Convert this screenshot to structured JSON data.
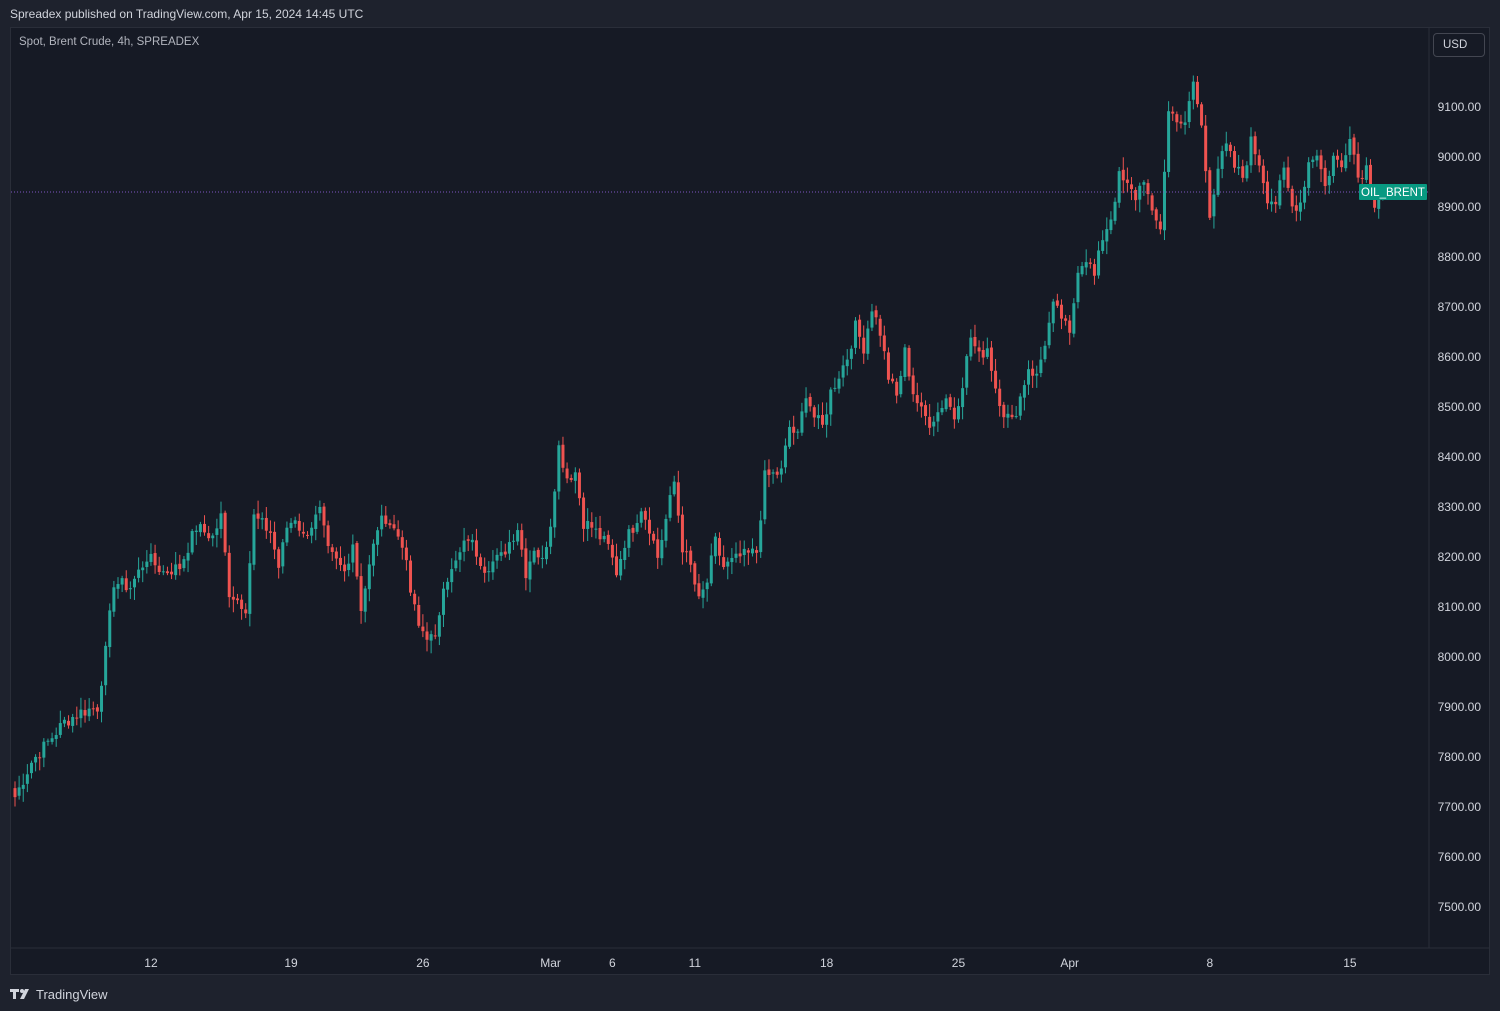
{
  "caption": "Spreadex published on TradingView.com, Apr 15, 2024 14:45 UTC",
  "symbol": "Spot, Brent Crude, 4h, SPREADEX",
  "currency": "USD",
  "brand": "TradingView",
  "colors": {
    "up": "#26a69a",
    "down": "#ef5350",
    "price_line": "#7e57c2",
    "price_tag": "#089981"
  },
  "chart_data": {
    "type": "candlestick",
    "series_name": "OIL_BRENT",
    "last_price_label": "OIL_BRENT",
    "last_price": 8930,
    "ylim": [
      7410,
      9250
    ],
    "yticks": [
      7500,
      7600,
      7700,
      7800,
      7900,
      8000,
      8100,
      8200,
      8300,
      8400,
      8500,
      8600,
      8700,
      8800,
      8900,
      9000,
      9100
    ],
    "ytick_labels": [
      "7500.00",
      "7600.00",
      "7700.00",
      "7800.00",
      "7900.00",
      "8000.00",
      "8100.00",
      "8200.00",
      "8300.00",
      "8400.00",
      "8500.00",
      "8600.00",
      "8700.00",
      "8800.00",
      "8900.00",
      "9000.00",
      "9100.00"
    ],
    "x_ticks": [
      {
        "index": 33,
        "label": "12"
      },
      {
        "index": 67,
        "label": "19"
      },
      {
        "index": 99,
        "label": "26"
      },
      {
        "index": 130,
        "label": "Mar"
      },
      {
        "index": 145,
        "label": "6"
      },
      {
        "index": 165,
        "label": "11"
      },
      {
        "index": 197,
        "label": "18"
      },
      {
        "index": 229,
        "label": "25"
      },
      {
        "index": 256,
        "label": "Apr"
      },
      {
        "index": 290,
        "label": "8"
      },
      {
        "index": 324,
        "label": "15"
      }
    ],
    "anchors": [
      [
        0,
        7720
      ],
      [
        4,
        7790
      ],
      [
        8,
        7830
      ],
      [
        12,
        7870
      ],
      [
        16,
        7890
      ],
      [
        20,
        7900
      ],
      [
        22,
        8010
      ],
      [
        24,
        8150
      ],
      [
        28,
        8140
      ],
      [
        32,
        8200
      ],
      [
        36,
        8170
      ],
      [
        40,
        8180
      ],
      [
        44,
        8260
      ],
      [
        48,
        8240
      ],
      [
        50,
        8280
      ],
      [
        52,
        8130
      ],
      [
        56,
        8100
      ],
      [
        58,
        8280
      ],
      [
        62,
        8250
      ],
      [
        64,
        8180
      ],
      [
        66,
        8260
      ],
      [
        68,
        8280
      ],
      [
        70,
        8240
      ],
      [
        74,
        8290
      ],
      [
        76,
        8210
      ],
      [
        80,
        8170
      ],
      [
        82,
        8230
      ],
      [
        84,
        8100
      ],
      [
        88,
        8260
      ],
      [
        90,
        8280
      ],
      [
        94,
        8230
      ],
      [
        96,
        8130
      ],
      [
        98,
        8060
      ],
      [
        102,
        8030
      ],
      [
        104,
        8150
      ],
      [
        106,
        8170
      ],
      [
        110,
        8240
      ],
      [
        114,
        8180
      ],
      [
        118,
        8200
      ],
      [
        122,
        8260
      ],
      [
        124,
        8170
      ],
      [
        126,
        8220
      ],
      [
        128,
        8190
      ],
      [
        130,
        8270
      ],
      [
        132,
        8420
      ],
      [
        134,
        8360
      ],
      [
        136,
        8370
      ],
      [
        138,
        8270
      ],
      [
        140,
        8260
      ],
      [
        144,
        8220
      ],
      [
        146,
        8170
      ],
      [
        148,
        8230
      ],
      [
        150,
        8260
      ],
      [
        152,
        8300
      ],
      [
        154,
        8260
      ],
      [
        156,
        8200
      ],
      [
        160,
        8350
      ],
      [
        162,
        8220
      ],
      [
        164,
        8180
      ],
      [
        166,
        8110
      ],
      [
        168,
        8150
      ],
      [
        170,
        8230
      ],
      [
        172,
        8180
      ],
      [
        176,
        8200
      ],
      [
        180,
        8210
      ],
      [
        182,
        8360
      ],
      [
        186,
        8370
      ],
      [
        188,
        8460
      ],
      [
        190,
        8440
      ],
      [
        192,
        8530
      ],
      [
        194,
        8480
      ],
      [
        196,
        8460
      ],
      [
        198,
        8530
      ],
      [
        202,
        8600
      ],
      [
        204,
        8660
      ],
      [
        206,
        8620
      ],
      [
        208,
        8700
      ],
      [
        210,
        8650
      ],
      [
        212,
        8560
      ],
      [
        214,
        8520
      ],
      [
        216,
        8610
      ],
      [
        218,
        8530
      ],
      [
        220,
        8490
      ],
      [
        222,
        8470
      ],
      [
        224,
        8490
      ],
      [
        226,
        8520
      ],
      [
        228,
        8480
      ],
      [
        230,
        8550
      ],
      [
        232,
        8640
      ],
      [
        234,
        8600
      ],
      [
        236,
        8620
      ],
      [
        238,
        8540
      ],
      [
        240,
        8490
      ],
      [
        242,
        8470
      ],
      [
        244,
        8520
      ],
      [
        246,
        8580
      ],
      [
        248,
        8560
      ],
      [
        250,
        8630
      ],
      [
        252,
        8700
      ],
      [
        254,
        8680
      ],
      [
        256,
        8640
      ],
      [
        258,
        8780
      ],
      [
        260,
        8800
      ],
      [
        262,
        8760
      ],
      [
        264,
        8840
      ],
      [
        266,
        8880
      ],
      [
        268,
        8960
      ],
      [
        270,
        8940
      ],
      [
        272,
        8920
      ],
      [
        274,
        8960
      ],
      [
        276,
        8880
      ],
      [
        278,
        8860
      ],
      [
        280,
        9090
      ],
      [
        282,
        9080
      ],
      [
        284,
        9060
      ],
      [
        286,
        9150
      ],
      [
        288,
        9060
      ],
      [
        290,
        8890
      ],
      [
        292,
        8980
      ],
      [
        294,
        9020
      ],
      [
        296,
        8980
      ],
      [
        298,
        8960
      ],
      [
        300,
        9030
      ],
      [
        302,
        8990
      ],
      [
        304,
        8920
      ],
      [
        306,
        8910
      ],
      [
        308,
        8970
      ],
      [
        310,
        8900
      ],
      [
        312,
        8910
      ],
      [
        314,
        8990
      ],
      [
        316,
        9010
      ],
      [
        318,
        8940
      ],
      [
        320,
        9000
      ],
      [
        322,
        8980
      ],
      [
        324,
        9050
      ],
      [
        326,
        8960
      ],
      [
        328,
        8980
      ],
      [
        330,
        8910
      ],
      [
        332,
        8930
      ]
    ]
  }
}
